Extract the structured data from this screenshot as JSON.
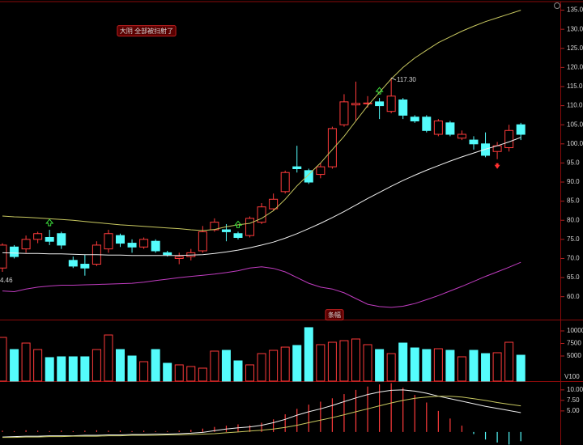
{
  "chart_data": [
    {
      "type": "candlestick",
      "open": [
        67.5,
        73.0,
        72.5,
        75.0,
        75.5,
        76.5,
        69.5,
        68.5,
        68.5,
        72.5,
        76.0,
        74.0,
        73.0,
        74.5,
        71.5,
        70.0,
        70.5,
        72.0,
        77.5,
        77.5,
        76.5,
        76.0,
        79.5,
        83.0,
        87.5,
        94.0,
        93.0,
        92.0,
        94.0,
        105.0,
        110.2,
        110.5,
        111.0,
        108.5,
        111.5,
        107.0,
        107.0,
        102.5,
        105.5,
        101.5,
        101.0,
        100.0,
        98.0,
        99.0,
        105.0
      ],
      "high": [
        74.0,
        73.5,
        76.0,
        77.0,
        77.5,
        77.0,
        70.5,
        71.0,
        74.5,
        77.5,
        76.5,
        75.0,
        75.5,
        75.0,
        72.0,
        71.5,
        72.5,
        78.5,
        80.5,
        79.0,
        77.0,
        81.0,
        84.5,
        87.0,
        93.0,
        99.5,
        93.5,
        95.0,
        104.5,
        113.0,
        116.3,
        112.5,
        112.0,
        117.3,
        112.0,
        107.5,
        107.5,
        106.5,
        106.0,
        103.5,
        102.0,
        103.0,
        100.5,
        105.0,
        105.5
      ],
      "low": [
        66.5,
        70.0,
        71.5,
        74.0,
        73.5,
        72.5,
        67.5,
        65.5,
        68.0,
        71.5,
        73.0,
        71.5,
        72.5,
        71.5,
        70.5,
        68.5,
        69.5,
        71.5,
        77.0,
        74.5,
        75.0,
        75.5,
        79.0,
        82.5,
        87.0,
        92.5,
        89.5,
        91.0,
        93.5,
        104.5,
        106.0,
        109.5,
        106.5,
        108.0,
        106.5,
        105.5,
        103.0,
        102.0,
        102.0,
        101.0,
        98.5,
        96.5,
        96.0,
        98.0,
        101.0
      ],
      "close": [
        73.5,
        70.5,
        75.0,
        76.5,
        74.5,
        73.5,
        68.0,
        67.5,
        73.5,
        76.5,
        74.0,
        73.0,
        75.0,
        72.0,
        71.0,
        70.5,
        71.5,
        77.0,
        79.5,
        77.0,
        75.5,
        80.5,
        83.5,
        85.5,
        92.5,
        93.5,
        90.0,
        94.0,
        104.0,
        111.0,
        110.6,
        110.7,
        110.0,
        112.5,
        107.5,
        106.0,
        103.5,
        106.0,
        102.5,
        102.5,
        100.0,
        97.0,
        99.5,
        103.5,
        102.5
      ],
      "up_color": "#ff3b3b",
      "down_color": "#54fcfc",
      "series": [
        {
          "color": "#c8c860",
          "values": [
            81.1,
            80.9,
            80.8,
            80.6,
            80.4,
            80.2,
            80.0,
            79.7,
            79.4,
            79.1,
            78.8,
            78.6,
            78.4,
            78.2,
            78.0,
            77.8,
            77.5,
            77.3,
            77.6,
            78.3,
            78.8,
            79.2,
            80.5,
            82.5,
            85.5,
            89.0,
            92.0,
            95.0,
            98.5,
            102.0,
            106.0,
            110.0,
            113.5,
            117.0,
            120.0,
            122.5,
            124.5,
            126.5,
            128.0,
            129.5,
            130.8,
            132.0,
            133.0,
            134.0,
            135.0
          ]
        },
        {
          "color": "#f0f0f0",
          "values": [
            71.5,
            71.4,
            71.3,
            71.3,
            71.2,
            71.2,
            71.1,
            71.0,
            71.0,
            70.9,
            70.9,
            70.8,
            70.8,
            70.8,
            70.8,
            70.8,
            70.9,
            71.0,
            71.3,
            71.7,
            72.2,
            72.8,
            73.5,
            74.3,
            75.3,
            76.5,
            77.8,
            79.2,
            80.7,
            82.3,
            84.0,
            85.7,
            87.3,
            88.9,
            90.4,
            91.8,
            93.1,
            94.3,
            95.5,
            96.6,
            97.6,
            98.6,
            99.5,
            100.5,
            101.7
          ]
        },
        {
          "color": "#c03cc0",
          "values": [
            61.5,
            61.3,
            62.0,
            62.5,
            62.8,
            63.0,
            63.0,
            63.1,
            63.2,
            63.3,
            63.4,
            63.5,
            63.8,
            64.2,
            64.6,
            65.0,
            65.3,
            65.6,
            65.9,
            66.3,
            66.8,
            67.5,
            67.8,
            67.4,
            66.5,
            65.0,
            63.5,
            62.5,
            62.0,
            61.0,
            59.5,
            58.0,
            57.4,
            57.2,
            57.5,
            58.2,
            59.2,
            60.3,
            61.5,
            62.7,
            64.0,
            65.3,
            66.5,
            67.7,
            69.0
          ]
        }
      ],
      "up_signals": [
        4,
        20,
        32
      ],
      "down_signals": [
        42
      ],
      "annotations": [
        "大阴 全部被扫射了",
        "117.30",
        "4.46",
        "条幅"
      ],
      "ylim": [
        54,
        136.6
      ],
      "yticks": [
        {
          "value": 60,
          "label": "60.0"
        },
        {
          "value": 65,
          "label": "65.0"
        },
        {
          "value": 70,
          "label": "70.0"
        },
        {
          "value": 75,
          "label": "75.0"
        },
        {
          "value": 80,
          "label": "80.0"
        },
        {
          "value": 85,
          "label": "85.0"
        },
        {
          "value": 90,
          "label": "90.0"
        },
        {
          "value": 95,
          "label": "95.0"
        },
        {
          "value": 100,
          "label": "100.0"
        },
        {
          "value": 105,
          "label": "105.0"
        },
        {
          "value": 110,
          "label": "110.0"
        },
        {
          "value": 115,
          "label": "115.0"
        },
        {
          "value": 120,
          "label": "120.0"
        },
        {
          "value": 125,
          "label": "125.0"
        },
        {
          "value": 130,
          "label": "130.0"
        },
        {
          "value": 135,
          "label": "135.0"
        }
      ]
    },
    {
      "type": "bar",
      "values": [
        8710,
        6290,
        7580,
        6290,
        4680,
        4840,
        4840,
        4840,
        6290,
        9190,
        6290,
        5000,
        3870,
        6290,
        3550,
        3230,
        2900,
        2580,
        5970,
        6130,
        4030,
        3230,
        5480,
        6130,
        6770,
        7100,
        10650,
        7260,
        7740,
        8060,
        8390,
        7260,
        6290,
        5480,
        7580,
        6610,
        6290,
        6450,
        6130,
        4840,
        6130,
        5480,
        5650,
        7740,
        5160
      ],
      "label": "V100",
      "ylim": [
        0,
        12000
      ],
      "yticks": [
        5000,
        7500,
        10000
      ]
    },
    {
      "type": "macd",
      "values": [
        0.3,
        0.2,
        0.4,
        0.3,
        0.2,
        0.3,
        0.2,
        0.3,
        0.4,
        0.3,
        0.3,
        0.2,
        0.3,
        0.2,
        0.2,
        0.3,
        0.5,
        0.8,
        1.2,
        1.5,
        1.8,
        1.6,
        2.2,
        3.0,
        4.2,
        5.5,
        6.5,
        7.2,
        8.0,
        9.0,
        10.0,
        10.8,
        11.3,
        11.6,
        10.5,
        8.8,
        7.0,
        5.0,
        3.2,
        1.5,
        -0.5,
        -1.8,
        -2.5,
        -3.0,
        -2.2
      ],
      "series": [
        {
          "color": "#f0f0f0",
          "values": [
            -1.2,
            -1.1,
            -1.0,
            -1.0,
            -0.9,
            -0.9,
            -0.9,
            -0.8,
            -0.8,
            -0.7,
            -0.7,
            -0.6,
            -0.6,
            -0.5,
            -0.5,
            -0.4,
            -0.3,
            -0.1,
            0.3,
            0.7,
            1.0,
            1.2,
            1.6,
            2.2,
            3.0,
            4.0,
            4.8,
            5.5,
            6.3,
            7.2,
            8.1,
            8.9,
            9.5,
            9.9,
            10.0,
            9.7,
            9.2,
            8.5,
            7.9,
            7.3,
            6.7,
            6.1,
            5.6,
            5.1,
            4.6
          ]
        },
        {
          "color": "#c8c860",
          "values": [
            -1.3,
            -1.3,
            -1.2,
            -1.2,
            -1.1,
            -1.1,
            -1.0,
            -1.0,
            -1.0,
            -0.9,
            -0.9,
            -0.8,
            -0.8,
            -0.8,
            -0.7,
            -0.7,
            -0.6,
            -0.5,
            -0.4,
            -0.2,
            0.0,
            0.2,
            0.4,
            0.7,
            1.1,
            1.6,
            2.2,
            2.8,
            3.4,
            4.1,
            4.8,
            5.5,
            6.2,
            6.9,
            7.5,
            8.0,
            8.3,
            8.5,
            8.5,
            8.3,
            7.9,
            7.5,
            7.0,
            6.6,
            6.2
          ]
        }
      ],
      "ylim": [
        -3.1,
        11.9
      ],
      "yticks": [
        {
          "value": 5,
          "label": "5.00"
        },
        {
          "value": 7.5,
          "label": "7.50"
        },
        {
          "value": 10,
          "label": "10.00"
        }
      ]
    }
  ]
}
